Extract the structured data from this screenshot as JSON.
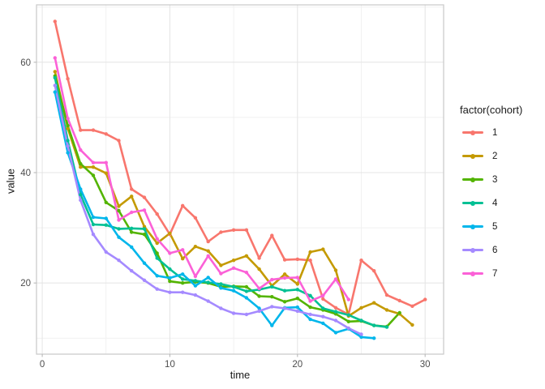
{
  "figure": {
    "background": "#ffffff",
    "panel_border_color": "#c9c9c9",
    "grid_major_color": "#e4e4e4",
    "grid_minor_color": "#f1f1f1",
    "tick_color": "#b3b3b3",
    "tick_label_color": "#4d4d4d",
    "axis_title_color": "#1a1a1a"
  },
  "chart_data": {
    "type": "line",
    "title": "",
    "xlabel": "time",
    "ylabel": "value",
    "legend_title": "factor(cohort)",
    "legend_position": "right",
    "grid": true,
    "x_start": 1,
    "x_step": 1,
    "xlim": [
      -0.45,
      31.45
    ],
    "ylim": [
      7.1,
      70.4
    ],
    "x_major_ticks": [
      0,
      10,
      20,
      30
    ],
    "x_minor_ticks": [
      5,
      15,
      25
    ],
    "y_major_ticks": [
      20,
      40,
      60
    ],
    "y_minor_ticks": [
      10,
      30,
      50,
      70
    ],
    "series": [
      {
        "name": "1",
        "color": "#F8766D",
        "values": [
          67.4,
          57,
          47.7,
          47.7,
          47,
          45.8,
          37,
          35.5,
          32.5,
          28.8,
          34,
          31.8,
          27.5,
          29.2,
          29.6,
          29.6,
          24.5,
          28.6,
          24.2,
          24.3,
          24.1,
          17.1,
          15.5,
          14.3,
          24.1,
          22.2,
          17.8,
          16.8,
          15.8,
          17
        ]
      },
      {
        "name": "2",
        "color": "#C49A00",
        "values": [
          58.3,
          48,
          41,
          41,
          39.9,
          33.9,
          35.7,
          30.2,
          27.2,
          29,
          24.4,
          26.6,
          25.8,
          23.2,
          24.1,
          24.9,
          22.5,
          19.5,
          21.6,
          19.8,
          25.6,
          26.1,
          22.3,
          14,
          15.5,
          16.4,
          15.1,
          14.4,
          12.4
        ]
      },
      {
        "name": "3",
        "color": "#53B400",
        "values": [
          57.5,
          48.5,
          41.6,
          39.5,
          34.6,
          33.1,
          29.2,
          28.8,
          25.4,
          20.3,
          20,
          20.2,
          20,
          19.3,
          19.4,
          19.3,
          17.6,
          17.5,
          16.6,
          17.2,
          15.6,
          15.1,
          14.4,
          13,
          13.1,
          12.3,
          12.1,
          14.6
        ]
      },
      {
        "name": "4",
        "color": "#00C094",
        "values": [
          57.2,
          45.8,
          36,
          30.6,
          30.5,
          29.8,
          29.9,
          29.8,
          24.5,
          22.5,
          20.7,
          20.4,
          20.1,
          19.8,
          19.3,
          18.5,
          18.8,
          19.3,
          18.6,
          18.8,
          17.7,
          15.4,
          14.8,
          14.2,
          13.2,
          12.3,
          12
        ]
      },
      {
        "name": "5",
        "color": "#00B6EB",
        "values": [
          54.6,
          43.6,
          37,
          31.9,
          31.7,
          28.3,
          26.5,
          23.6,
          21.3,
          20.9,
          21.6,
          19.5,
          21,
          19.1,
          18.6,
          17.3,
          15.4,
          12.3,
          15.5,
          15.6,
          13.4,
          12.7,
          11,
          11.7,
          10.2,
          10
        ]
      },
      {
        "name": "6",
        "color": "#A58AFF",
        "values": [
          55.8,
          44.8,
          35,
          28.8,
          25.6,
          24.1,
          22.2,
          20.5,
          18.9,
          18.3,
          18.3,
          17.8,
          16.7,
          15.4,
          14.5,
          14.3,
          14.9,
          15.7,
          15.4,
          14.9,
          14.3,
          13.9,
          13.2,
          11.8,
          10.7
        ]
      },
      {
        "name": "7",
        "color": "#FB61D7",
        "values": [
          60.8,
          49.8,
          44.1,
          41.8,
          41.8,
          31.4,
          32.8,
          33.2,
          28,
          25.4,
          26,
          21.2,
          24.9,
          21.7,
          22.7,
          21.9,
          19,
          20.6,
          20.9,
          21,
          16.7,
          17.7,
          20.7,
          17
        ]
      }
    ]
  }
}
